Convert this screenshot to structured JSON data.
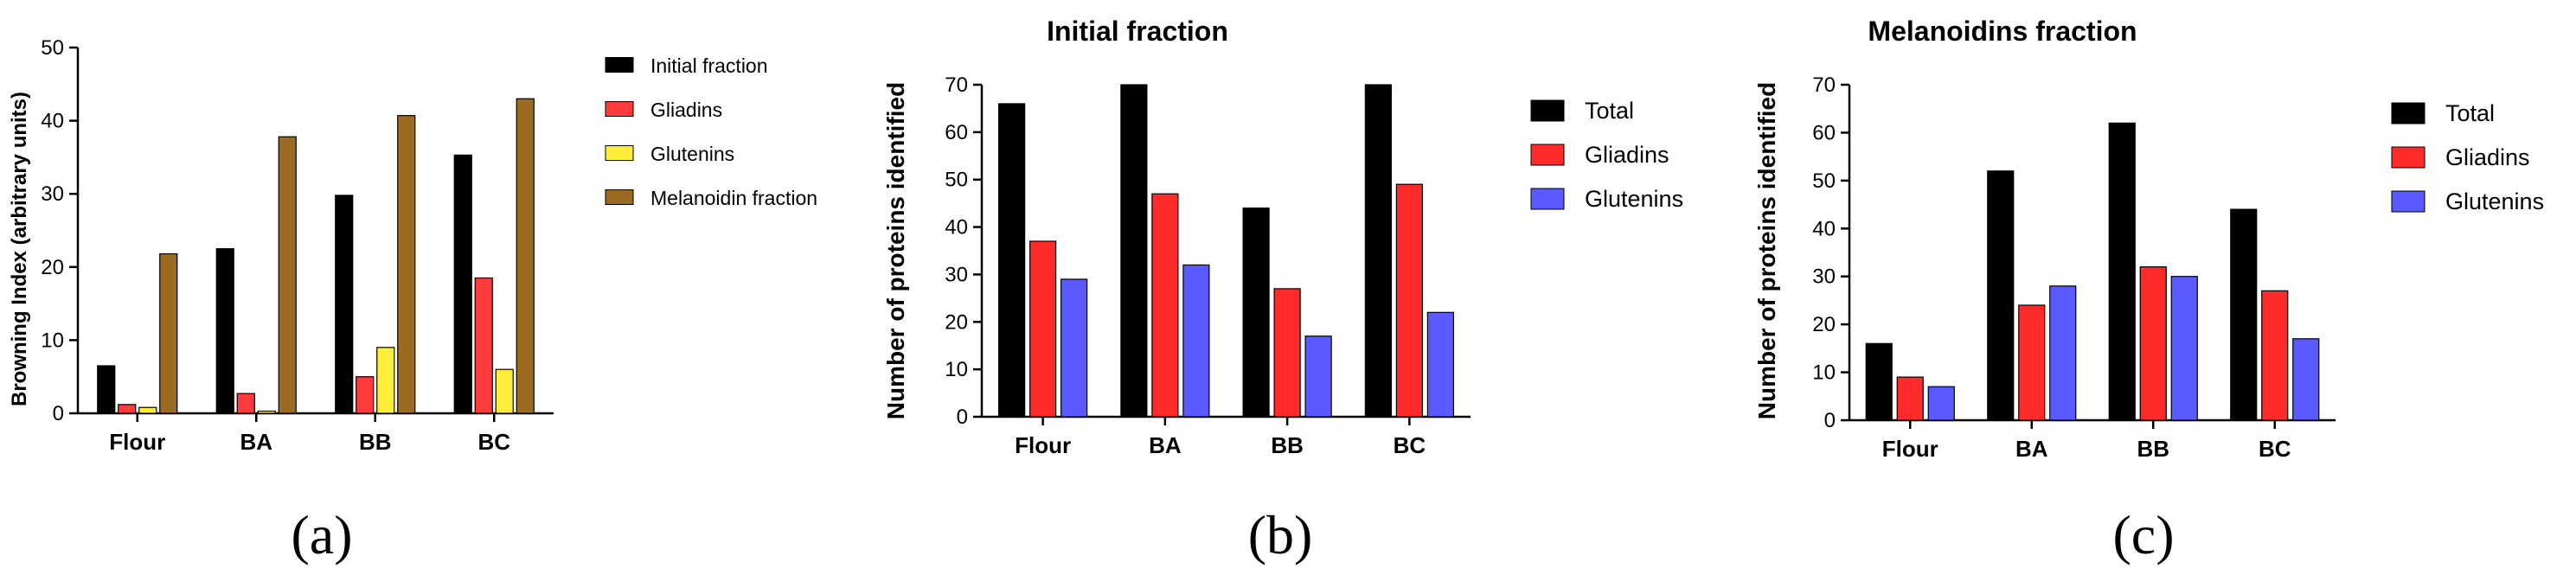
{
  "chart_data": [
    {
      "type": "bar",
      "panel_label": "(a)",
      "title": "",
      "ylabel": "Browning Index (arbitrary units)",
      "ylim": [
        0,
        50
      ],
      "yticks": [
        0,
        10,
        20,
        30,
        40,
        50
      ],
      "categories": [
        "Flour",
        "BA",
        "BB",
        "BC"
      ],
      "legend_position": "right",
      "series": [
        {
          "name": "Initial fraction",
          "color": "#000000",
          "values": [
            6.5,
            22.5,
            29.8,
            35.3
          ]
        },
        {
          "name": "Gliadins",
          "color": "#ff3b3b",
          "values": [
            1.2,
            2.7,
            5.0,
            18.5
          ]
        },
        {
          "name": "Glutenins",
          "color": "#ffec3b",
          "values": [
            0.8,
            0.3,
            9.0,
            6.0
          ]
        },
        {
          "name": "Melanoidin fraction",
          "color": "#9c6b22",
          "values": [
            21.8,
            37.8,
            40.7,
            43.0
          ]
        }
      ]
    },
    {
      "type": "bar",
      "panel_label": "(b)",
      "title": "Initial fraction",
      "ylabel": "Number of proteins identified",
      "ylim": [
        0,
        70
      ],
      "yticks": [
        0,
        10,
        20,
        30,
        40,
        50,
        60,
        70
      ],
      "categories": [
        "Flour",
        "BA",
        "BB",
        "BC"
      ],
      "legend_position": "right",
      "series": [
        {
          "name": "Total",
          "color": "#000000",
          "values": [
            66,
            70,
            44,
            70
          ]
        },
        {
          "name": "Gliadins",
          "color": "#ff2b2b",
          "values": [
            37,
            47,
            27,
            49
          ]
        },
        {
          "name": "Glutenins",
          "color": "#5a5aff",
          "values": [
            29,
            32,
            17,
            22
          ]
        }
      ]
    },
    {
      "type": "bar",
      "panel_label": "(c)",
      "title": "Melanoidins fraction",
      "ylabel": "Number of proteins identified",
      "ylim": [
        0,
        70
      ],
      "yticks": [
        0,
        10,
        20,
        30,
        40,
        50,
        60,
        70
      ],
      "categories": [
        "Flour",
        "BA",
        "BB",
        "BC"
      ],
      "legend_position": "right",
      "series": [
        {
          "name": "Total",
          "color": "#000000",
          "values": [
            16,
            52,
            62,
            44
          ]
        },
        {
          "name": "Gliadins",
          "color": "#ff2b2b",
          "values": [
            9,
            24,
            32,
            27
          ]
        },
        {
          "name": "Glutenins",
          "color": "#5a5aff",
          "values": [
            7,
            28,
            30,
            17
          ]
        }
      ]
    }
  ]
}
